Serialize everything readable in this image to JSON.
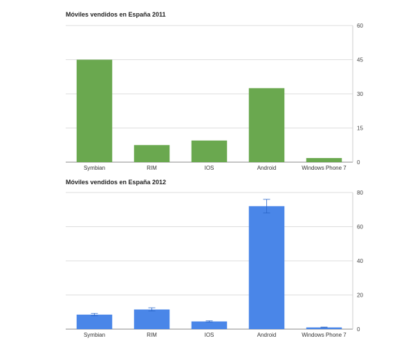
{
  "chart_data": [
    {
      "type": "bar",
      "title": "Móviles vendidos en España 2011",
      "categories": [
        "Symbian",
        "RIM",
        "IOS",
        "Android",
        "Windows Phone 7"
      ],
      "values": [
        45,
        7.5,
        9.5,
        32.5,
        1.8
      ],
      "ylim": [
        0,
        60
      ],
      "yticks": [
        0,
        15,
        30,
        45,
        60
      ],
      "xlabel": "",
      "ylabel": "",
      "grid": true,
      "y_axis_side": "right",
      "color": "#6aa84f"
    },
    {
      "type": "bar",
      "title": "Móviles vendidos en España 2012",
      "categories": [
        "Symbian",
        "RIM",
        "IOS",
        "Android",
        "Windows Phone 7"
      ],
      "values": [
        8.5,
        11.5,
        4.5,
        72,
        1
      ],
      "error_high": [
        9.2,
        12.5,
        4.9,
        76,
        1.2
      ],
      "error_low": [
        7.8,
        10.6,
        4.1,
        68,
        0.8
      ],
      "ylim": [
        0,
        80
      ],
      "yticks": [
        0,
        20,
        40,
        60,
        80
      ],
      "xlabel": "",
      "ylabel": "",
      "grid": true,
      "y_axis_side": "right",
      "color": "#4a86e8"
    }
  ]
}
